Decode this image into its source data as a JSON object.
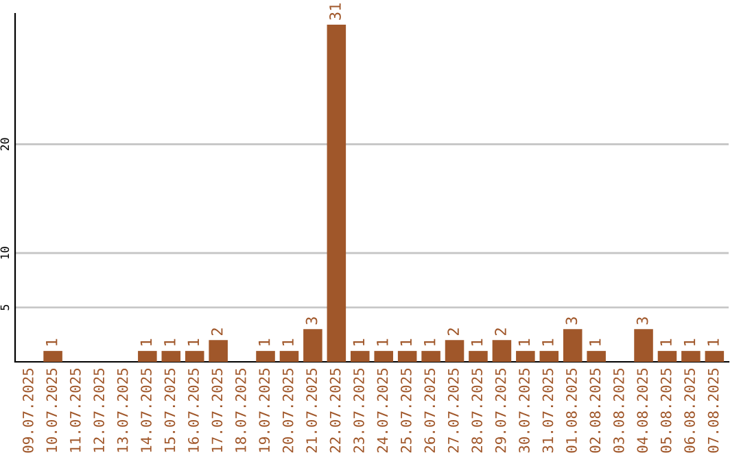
{
  "chart_data": {
    "type": "bar",
    "categories": [
      "09.07.2025",
      "10.07.2025",
      "11.07.2025",
      "12.07.2025",
      "13.07.2025",
      "14.07.2025",
      "15.07.2025",
      "16.07.2025",
      "17.07.2025",
      "18.07.2025",
      "19.07.2025",
      "20.07.2025",
      "21.07.2025",
      "22.07.2025",
      "23.07.2025",
      "24.07.2025",
      "25.07.2025",
      "26.07.2025",
      "27.07.2025",
      "28.07.2025",
      "29.07.2025",
      "30.07.2025",
      "31.07.2025",
      "01.08.2025",
      "02.08.2025",
      "03.08.2025",
      "04.08.2025",
      "05.08.2025",
      "06.08.2025",
      "07.08.2025"
    ],
    "values": [
      0,
      1,
      0,
      0,
      0,
      1,
      1,
      1,
      2,
      0,
      1,
      1,
      3,
      31,
      1,
      1,
      1,
      1,
      2,
      1,
      2,
      1,
      1,
      3,
      1,
      0,
      3,
      1,
      1,
      1
    ],
    "value_labels": [
      null,
      "1",
      null,
      null,
      null,
      "1",
      "1",
      "1",
      "2",
      null,
      "1",
      "1",
      "3",
      "31",
      "1",
      "1",
      "1",
      "1",
      "2",
      "1",
      "2",
      "1",
      "1",
      "3",
      "1",
      null,
      "3",
      "1",
      "1",
      "1"
    ],
    "color": "#a0572a",
    "ylim": [
      0,
      32
    ],
    "yticks": [
      5,
      10,
      20
    ],
    "grid": "y",
    "legend": false
  }
}
